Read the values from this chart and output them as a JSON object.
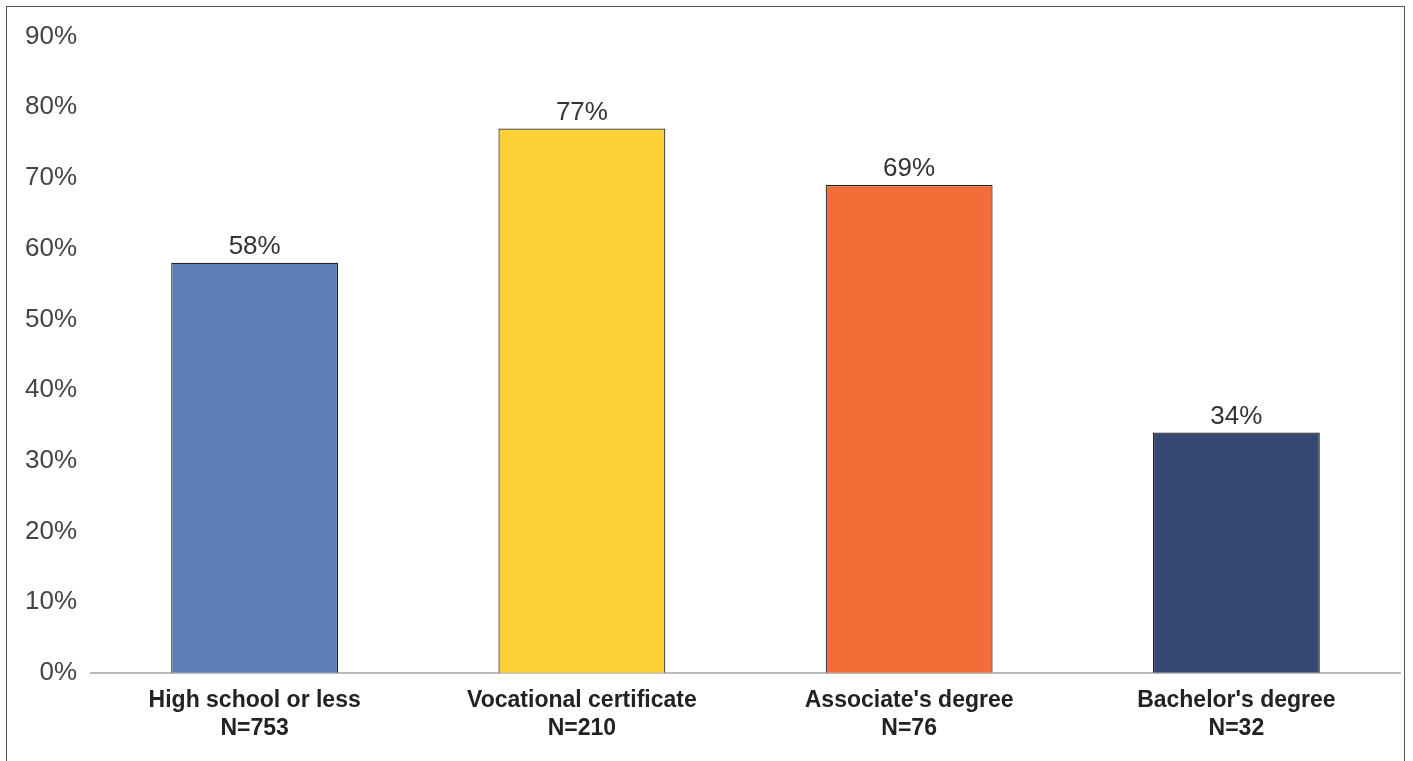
{
  "chart_data": {
    "type": "bar",
    "categories": [
      "High school or less\nN=753",
      "Vocational certificate\nN=210",
      "Associate's degree\nN=76",
      "Bachelor's degree\nN=32"
    ],
    "values": [
      58,
      77,
      69,
      34
    ],
    "colors": [
      "#5b7fb6",
      "#fed136",
      "#f26e38",
      "#364871"
    ],
    "value_labels": [
      "58%",
      "77%",
      "69%",
      "34%"
    ],
    "ylim": [
      0,
      90
    ],
    "yticks": [
      {
        "value": 0,
        "label": "0%"
      },
      {
        "value": 10,
        "label": "10%"
      },
      {
        "value": 20,
        "label": "20%"
      },
      {
        "value": 30,
        "label": "30%"
      },
      {
        "value": 40,
        "label": "40%"
      },
      {
        "value": 50,
        "label": "50%"
      },
      {
        "value": 60,
        "label": "60%"
      },
      {
        "value": 70,
        "label": "70%"
      },
      {
        "value": 80,
        "label": "80%"
      },
      {
        "value": 90,
        "label": "90%"
      }
    ],
    "grid": false,
    "legend": false
  }
}
